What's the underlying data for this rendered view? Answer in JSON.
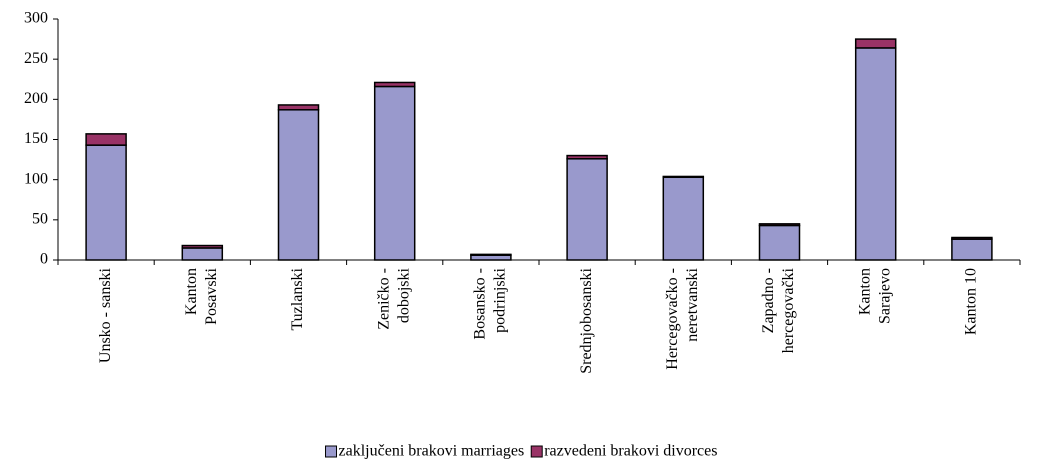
{
  "chart_data": {
    "type": "stacked_bar",
    "categories": [
      [
        "Unsko - sanski"
      ],
      [
        "Kanton",
        "Posavski"
      ],
      [
        "Tuzlanski"
      ],
      [
        "Zeničko -",
        "dobojski"
      ],
      [
        "Bosansko -",
        "podrinjski"
      ],
      [
        "Srednjobosanski"
      ],
      [
        "Hercegovačko -",
        "neretvanski"
      ],
      [
        "Zapadno -",
        "hercegovački"
      ],
      [
        "Kanton",
        "Sarajevo"
      ],
      [
        "Kanton 10"
      ]
    ],
    "series": [
      {
        "name": "zaključeni brakovi marriages",
        "color": "#9999cc",
        "values": [
          143,
          15,
          187,
          216,
          6,
          126,
          103,
          43,
          264,
          26
        ]
      },
      {
        "name": "razvedeni brakovi divorces",
        "color": "#993366",
        "values": [
          14,
          3,
          6,
          5,
          1,
          4,
          1,
          2,
          11,
          2
        ]
      }
    ],
    "ylim": [
      0,
      300
    ],
    "yticks": [
      0,
      50,
      100,
      150,
      200,
      250,
      300
    ],
    "legend": "bottom"
  }
}
